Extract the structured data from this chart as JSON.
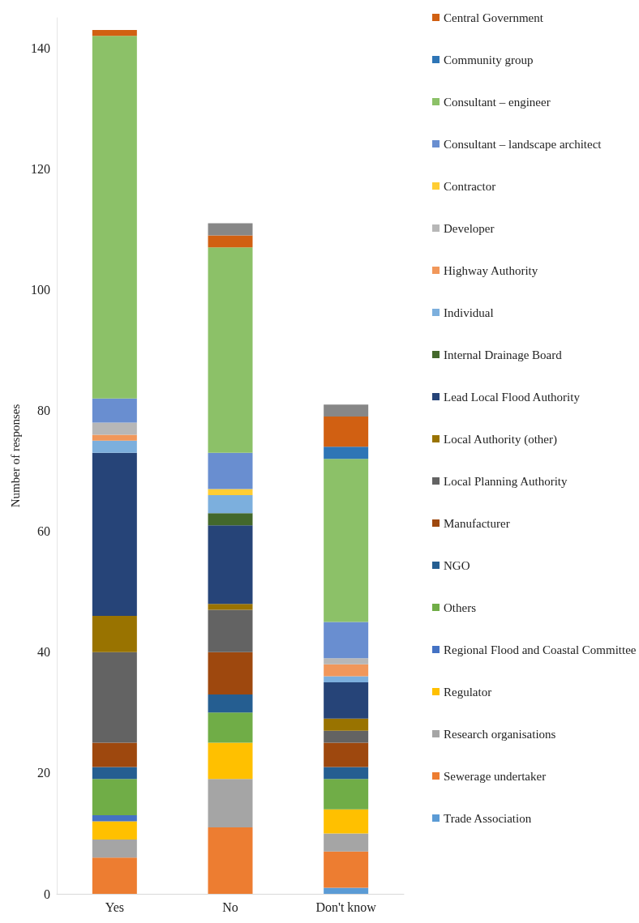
{
  "chart_data": {
    "type": "bar",
    "stacked": true,
    "ylabel": "Number of responses",
    "categories": [
      "Yes",
      "No",
      "Don't know"
    ],
    "ylim": [
      0,
      145
    ],
    "yticks": [
      0,
      20,
      40,
      60,
      80,
      100,
      120,
      140
    ],
    "grid": false,
    "legend": "right",
    "series": [
      {
        "name": "Trade Association",
        "color": "#5b9bd5",
        "values": [
          0,
          0,
          1
        ]
      },
      {
        "name": "Sewerage undertaker",
        "color": "#ed7d31",
        "values": [
          6,
          11,
          6
        ]
      },
      {
        "name": "Research organisations",
        "color": "#a5a5a5",
        "values": [
          3,
          8,
          3
        ]
      },
      {
        "name": "Regulator",
        "color": "#ffc000",
        "values": [
          3,
          6,
          4
        ]
      },
      {
        "name": "Regional Flood and Coastal Committee",
        "color": "#4472c4",
        "values": [
          1,
          0,
          0
        ]
      },
      {
        "name": "Others",
        "color": "#70ad47",
        "values": [
          6,
          5,
          5
        ]
      },
      {
        "name": "NGO",
        "color": "#255e91",
        "values": [
          2,
          3,
          2
        ]
      },
      {
        "name": "Manufacturer",
        "color": "#9e480e",
        "values": [
          4,
          7,
          4
        ]
      },
      {
        "name": "Local Planning Authority",
        "color": "#636363",
        "values": [
          15,
          7,
          2
        ]
      },
      {
        "name": "Local Authority (other)",
        "color": "#997300",
        "values": [
          6,
          1,
          2
        ]
      },
      {
        "name": "Lead Local Flood Authority",
        "color": "#264478",
        "values": [
          27,
          13,
          6
        ]
      },
      {
        "name": "Internal Drainage Board",
        "color": "#43682b",
        "values": [
          0,
          2,
          0
        ]
      },
      {
        "name": "Individual",
        "color": "#7cafdd",
        "values": [
          2,
          3,
          1
        ]
      },
      {
        "name": "Highway Authority",
        "color": "#f1975a",
        "values": [
          1,
          0,
          2
        ]
      },
      {
        "name": "Developer",
        "color": "#b7b7b7",
        "values": [
          2,
          0,
          1
        ]
      },
      {
        "name": "Contractor",
        "color": "#ffcd33",
        "values": [
          0,
          1,
          0
        ]
      },
      {
        "name": "Consultant – landscape architect",
        "color": "#698ed0",
        "values": [
          4,
          6,
          6
        ]
      },
      {
        "name": "Consultant – engineer",
        "color": "#8cc168",
        "values": [
          60,
          34,
          27
        ]
      },
      {
        "name": "Community group",
        "color": "#2e75b6",
        "values": [
          0,
          0,
          2
        ]
      },
      {
        "name": "Central Government",
        "color": "#d16012",
        "values": [
          1,
          2,
          5
        ]
      },
      {
        "color": "#878787",
        "values": [
          0,
          2,
          2
        ]
      }
    ]
  }
}
